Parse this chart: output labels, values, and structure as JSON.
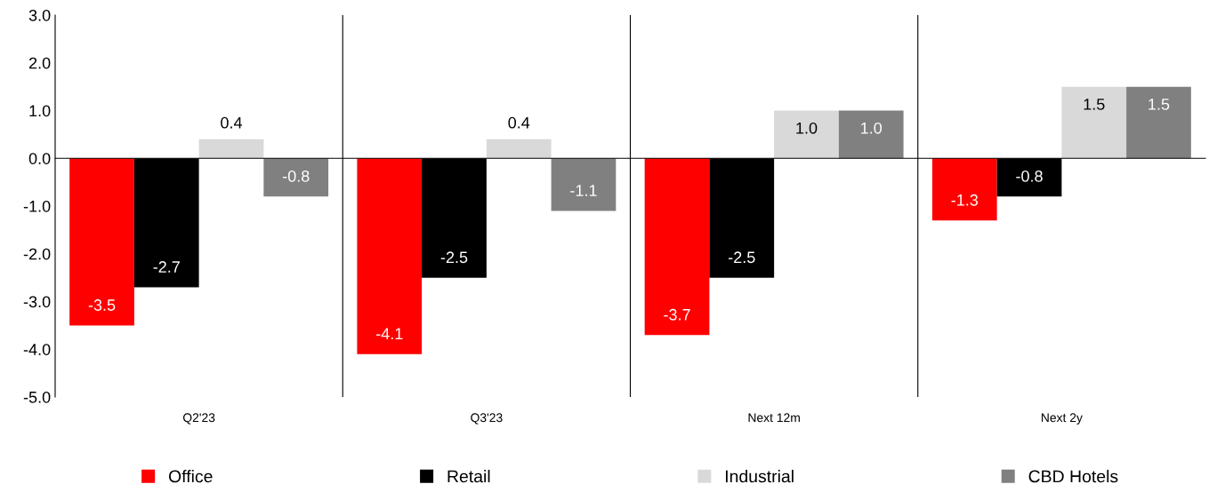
{
  "chart_data": {
    "type": "bar",
    "categories": [
      "Q2'23",
      "Q3'23",
      "Next 12m",
      "Next 2y"
    ],
    "series": [
      {
        "name": "Office",
        "color": "#ff0000",
        "values": [
          -3.5,
          -4.1,
          -3.7,
          -1.3
        ],
        "value_labels": [
          "-3.5",
          "-4.1",
          "-3.7",
          "-1.3"
        ]
      },
      {
        "name": "Retail",
        "color": "#000000",
        "values": [
          -2.7,
          -2.5,
          -2.5,
          -0.8
        ],
        "value_labels": [
          "-2.7",
          "-2.5",
          "-2.5",
          "-0.8"
        ]
      },
      {
        "name": "Industrial",
        "color": "#d9d9d9",
        "values": [
          0.4,
          0.4,
          1.0,
          1.5
        ],
        "value_labels": [
          "0.4",
          "0.4",
          "1.0",
          "1.5"
        ]
      },
      {
        "name": "CBD Hotels",
        "color": "#808080",
        "values": [
          -0.8,
          -1.1,
          1.0,
          1.5
        ],
        "value_labels": [
          "-0.8",
          "-1.1",
          "1.0",
          "1.5"
        ]
      }
    ],
    "ylim": [
      -5,
      3
    ],
    "yticks": [
      {
        "value": 3,
        "label": "3.0"
      },
      {
        "value": 2,
        "label": "2.0"
      },
      {
        "value": 1,
        "label": "1.0"
      },
      {
        "value": 0,
        "label": "0.0"
      },
      {
        "value": -1,
        "label": "-1.0"
      },
      {
        "value": -2,
        "label": "-2.0"
      },
      {
        "value": -3,
        "label": "-3.0"
      },
      {
        "value": -4,
        "label": "-4.0"
      },
      {
        "value": -5,
        "label": "-5.0"
      }
    ],
    "legend": "bottom"
  }
}
